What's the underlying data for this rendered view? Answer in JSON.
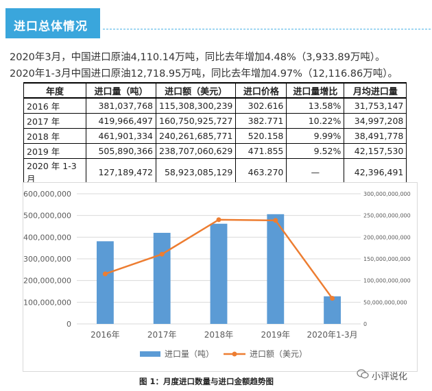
{
  "section": {
    "title": "进口总体情况"
  },
  "paragraphs": [
    "2020年3月，中国进口原油4,110.14万吨，同比去年增加4.48%（3,933.89万吨）。",
    "2020年1-3月中国进口原油12,718.95万吨，同比去年增加4.97%（12,116.86万吨）。"
  ],
  "table": {
    "headers": [
      "年度",
      "进口量（吨）",
      "进口额（美元）",
      "进口价格",
      "进口量增比",
      "月均进口量"
    ],
    "rows": [
      [
        "2016 年",
        "381,037,768",
        "115,308,300,239",
        "302.616",
        "13.58%",
        "31,753,147"
      ],
      [
        "2017 年",
        "419,966,497",
        "160,750,925,727",
        "382.771",
        "10.22%",
        "34,997,208"
      ],
      [
        "2018 年",
        "461,901,334",
        "240,261,685,771",
        "520.158",
        "9.99%",
        "38,491,778"
      ],
      [
        "2019 年",
        "505,890,366",
        "238,707,060,629",
        "471.855",
        "9.52%",
        "42,157,530"
      ],
      [
        "2020 年 1-3 月",
        "127,189,472",
        "58,923,085,129",
        "463.270",
        "—",
        "42,396,491"
      ]
    ]
  },
  "chart_data": {
    "type": "bar",
    "categories": [
      "2016年",
      "2017年",
      "2018年",
      "2019年",
      "2020年1-3月"
    ],
    "series": [
      {
        "name": "进口量（吨）",
        "type": "bar",
        "axis": "left",
        "color": "#5b9bd5",
        "values": [
          381037768,
          419966497,
          461901334,
          505890366,
          127189472
        ]
      },
      {
        "name": "进口额（美元）",
        "type": "line",
        "axis": "right",
        "color": "#ed7d31",
        "values": [
          115308300239,
          160750925727,
          240261685771,
          238707060629,
          58923085129
        ]
      }
    ],
    "ylim_left": [
      0,
      600000000
    ],
    "ylim_right": [
      0,
      300000000000
    ],
    "yticks_left": [
      "0",
      "100,000,000",
      "200,000,000",
      "300,000,000",
      "400,000,000",
      "500,000,000",
      "600,000,000"
    ],
    "yticks_right": [
      "0",
      "50,000,000,000",
      "100,000,000,000",
      "150,000,000,000",
      "200,000,000,000",
      "250,000,000,000",
      "300,000,000,000"
    ],
    "grid": true,
    "legend": "bottom"
  },
  "caption": "图 1：月度进口数量与进口金额趋势图",
  "watermark": "小评说化"
}
